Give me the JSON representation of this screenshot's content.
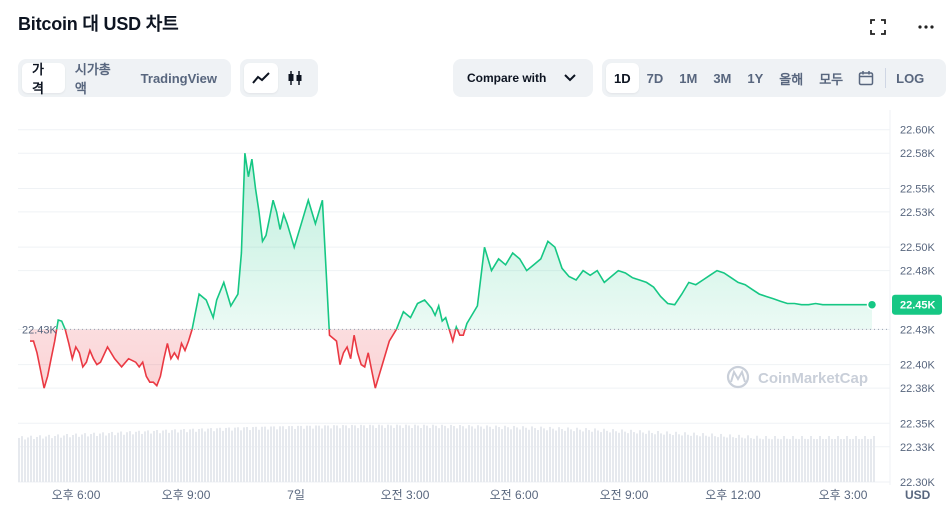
{
  "title": "Bitcoin 대 USD 차트",
  "icons": {
    "fullscreen": "fullscreen-icon",
    "more": "more-icon"
  },
  "view_tabs": [
    "가격",
    "시가총액",
    "TradingView"
  ],
  "chart_type_icons": [
    "line-chart-icon",
    "candlestick-icon"
  ],
  "compare_label": "Compare with",
  "range_tabs": [
    "1D",
    "7D",
    "1M",
    "3M",
    "1Y",
    "올해",
    "모두"
  ],
  "log_label": "LOG",
  "watermark": "CoinMarketCap",
  "colors": {
    "up": "#16c784",
    "down": "#ea3943",
    "volume": "#e6e9ee",
    "badge": "#16c784"
  },
  "chart_data": {
    "type": "area",
    "title": "",
    "x_ticks": [
      "오후 6:00",
      "오후 9:00",
      "7일",
      "오전 3:00",
      "오전 6:00",
      "오전 9:00",
      "오후 12:00",
      "오후 3:00"
    ],
    "y_ticks": [
      "22.60K",
      "22.58K",
      "22.55K",
      "22.53K",
      "22.50K",
      "22.48K",
      "22.43K",
      "22.40K",
      "22.38K",
      "22.35K",
      "22.33K",
      "22.30K"
    ],
    "y_unit": "USD",
    "ylim": [
      22300,
      22610
    ],
    "reference_label": "22.43K",
    "reference_value": 22430,
    "current_label": "22.45K",
    "current_value": 22451,
    "x_hours": [
      0,
      0.1,
      0.2,
      0.3,
      0.4,
      0.5,
      0.6,
      0.7,
      0.8,
      0.9,
      1.0,
      1.1,
      1.2,
      1.3,
      1.4,
      1.5,
      1.6,
      1.7,
      1.8,
      1.9,
      2.0,
      2.2,
      2.4,
      2.6,
      2.8,
      3.0,
      3.1,
      3.2,
      3.3,
      3.4,
      3.5,
      3.6,
      3.7,
      3.8,
      3.9,
      4.0,
      4.1,
      4.2,
      4.3,
      4.4,
      4.5,
      4.6,
      4.8,
      5.0,
      5.2,
      5.3,
      5.5,
      5.7,
      5.9,
      6.0,
      6.1,
      6.2,
      6.3,
      6.4,
      6.5,
      6.6,
      6.7,
      6.8,
      6.9,
      7.0,
      7.1,
      7.2,
      7.3,
      7.5,
      7.7,
      7.9,
      8.1,
      8.3,
      8.5,
      8.7,
      8.8,
      8.9,
      9.0,
      9.1,
      9.2,
      9.3,
      9.4,
      9.5,
      9.6,
      9.7,
      9.8,
      9.9,
      10.0,
      10.2,
      10.4,
      10.6,
      10.8,
      11.0,
      11.2,
      11.4,
      11.5,
      11.6,
      11.7,
      11.8,
      11.9,
      12.0,
      12.1,
      12.2,
      12.3,
      12.4,
      12.5,
      12.7,
      12.9,
      13.1,
      13.3,
      13.5,
      13.7,
      13.9,
      14.1,
      14.3,
      14.5,
      14.7,
      14.9,
      15.1,
      15.3,
      15.5,
      15.7,
      15.9,
      16.1,
      16.3,
      16.5,
      16.7,
      16.9,
      17.1,
      17.3,
      17.5,
      17.7,
      17.9,
      18.1,
      18.3,
      18.5,
      18.7,
      18.9,
      19.1,
      19.3,
      19.5,
      19.7,
      19.9,
      20.1,
      20.3,
      20.5,
      20.7,
      20.9,
      21.1,
      21.3,
      21.5,
      21.7,
      21.9,
      22.1,
      22.3,
      22.5,
      22.7,
      22.9,
      23.1,
      23.3,
      23.5,
      23.7,
      23.9
    ],
    "prices": [
      22420,
      22420,
      22410,
      22395,
      22380,
      22390,
      22405,
      22420,
      22438,
      22437,
      22430,
      22418,
      22405,
      22415,
      22410,
      22398,
      22402,
      22412,
      22405,
      22400,
      22402,
      22415,
      22405,
      22398,
      22405,
      22402,
      22398,
      22402,
      22390,
      22385,
      22385,
      22382,
      22390,
      22405,
      22418,
      22405,
      22410,
      22405,
      22418,
      22412,
      22420,
      22430,
      22460,
      22455,
      22440,
      22455,
      22470,
      22450,
      22460,
      22495,
      22580,
      22560,
      22575,
      22550,
      22530,
      22505,
      22510,
      22525,
      22540,
      22530,
      22515,
      22528,
      22520,
      22500,
      22520,
      22540,
      22520,
      22540,
      22425,
      22420,
      22400,
      22410,
      22415,
      22405,
      22425,
      22410,
      22400,
      22398,
      22410,
      22395,
      22380,
      22390,
      22400,
      22420,
      22430,
      22445,
      22440,
      22452,
      22455,
      22448,
      22442,
      22450,
      22437,
      22440,
      22430,
      22420,
      22432,
      22425,
      22425,
      22435,
      22440,
      22450,
      22500,
      22480,
      22490,
      22485,
      22495,
      22490,
      22480,
      22485,
      22490,
      22505,
      22500,
      22482,
      22475,
      22472,
      22480,
      22476,
      22480,
      22470,
      22475,
      22480,
      22478,
      22474,
      22472,
      22470,
      22466,
      22458,
      22452,
      22451,
      22460,
      22470,
      22468,
      22472,
      22476,
      22480,
      22478,
      22474,
      22470,
      22468,
      22464,
      22460,
      22458,
      22456,
      22454,
      22452,
      22452,
      22451,
      22451,
      22452,
      22451,
      22451,
      22451,
      22451,
      22451,
      22451,
      22451,
      22451
    ]
  }
}
